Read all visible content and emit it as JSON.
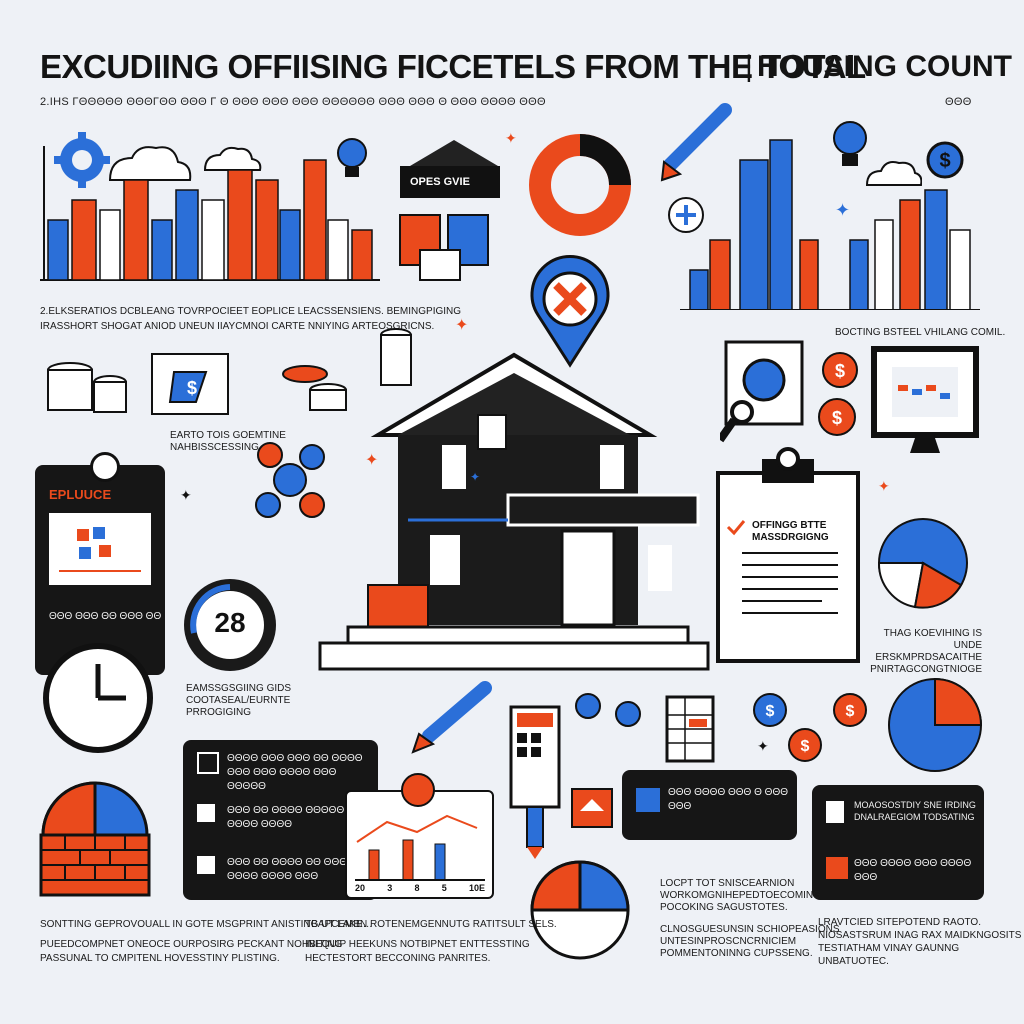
{
  "title": {
    "main": "EXCUDIING OFFIISING FICCETELS FROM THE TOTAL",
    "right": "HOUSING COUNT",
    "subtitle": "2.IHS ΓΘΘΘΘΘ ΘΘΘΓΘΘ ΘΘΘ Γ Θ ΘΘΘ ΘΘΘ ΘΘΘ ΘΘΘΘΘΘ ΘΘΘ ΘΘΘ Θ ΘΘΘ ΘΘΘΘ ΘΘΘ",
    "subtitle_right": "ΘΘΘ"
  },
  "colors": {
    "blue": "#2b6fd8",
    "orange": "#ea4a1c",
    "dark": "#161616",
    "bg": "#eef1f6"
  },
  "top_left": {
    "caption_1": "2.ELKSERATIOS DCBLEANG TOVRPOCIEET EOPLICE LEACSSENSIENS. BEMINGPIGING",
    "caption_2": "IRASSHORT SHOGAT ANIOD UNEUN IIAYCMNOI CARTE NNIYING ARTEOSGRICNS."
  },
  "sign_label": "OPES GVIE",
  "top_right_caption": "BOCTING BSTEEL VHILANG COMIL.",
  "earth_caption": {
    "line1": "EARTO TOIS GOEMTINE",
    "line2": "NAHBISSCESSING"
  },
  "left_panel": {
    "label": "EPLUUCE",
    "footer": "ΘΘΘ ΘΘΘ ΘΘ ΘΘΘ ΘΘ"
  },
  "gauge_value": "28",
  "gauge_caption": {
    "line1": "EAMSSGSGIING GIDS",
    "line2": "COOTASEAL/EURNTE",
    "line3": "PRROGIGING"
  },
  "clipboard": {
    "line1": "OFFINGG BTTE",
    "line2": "MASSDRGIGNG"
  },
  "right_caption": {
    "line1": "THAG KOEVIHING IS UNDE",
    "line2": "ERSKMPRDSACAITHE",
    "line3": "PNIRTAGCONGTNIOGE"
  },
  "notes_panel": {
    "item1": "ΘΘΘΘ ΘΘΘ ΘΘΘ ΘΘ ΘΘΘΘ ΘΘΘ ΘΘΘ ΘΘΘΘ ΘΘΘ ΘΘΘΘΘ",
    "item2": "ΘΘΘ ΘΘ ΘΘΘΘ ΘΘΘΘΘ ΘΘΘΘ ΘΘΘΘ",
    "item3": "ΘΘΘ ΘΘ ΘΘΘΘ ΘΘ ΘΘΘ ΘΘΘΘ ΘΘΘΘ ΘΘΘ"
  },
  "mini_chart_labels": [
    "20",
    "3",
    "8",
    "5",
    "10E"
  ],
  "blue_panel_text": "ΘΘΘ ΘΘΘΘ ΘΘΘ Θ ΘΘΘ ΘΘΘ",
  "right_panel": {
    "item1": "MOAOSOSTDIY SNE IRDING",
    "item1b": "DNALRAEGIOM TODSATING",
    "item2": "ΘΘΘ ΘΘΘΘ ΘΘΘ ΘΘΘΘ ΘΘΘ"
  },
  "bottom": {
    "col1_line1": "SONTTING GEPROVOUALL IN GOTE MSGPRINT ANISTING UT LAKE…",
    "col1_line2": "PUEEDCOMPNET ONEOCE OURPOSIRG PECKANT NOHBITING",
    "col1_line3": "PASSUNAL TO CMPITENL HOVESSTINY PLISTING.",
    "col2_line1": "TBAPCEMBN ROTENEMGENNUTG RATITSULT SELS.",
    "col2_line2": "INEQUIP HEEKUNS NOTBIPNET ENTTESSTING",
    "col2_line3": "HECTESTORT BECCONING PANRITES.",
    "col3_line1": "LOCPT TOT SNISCEARNION",
    "col3_line2": "WORKOMGNIHEPEDTOECOMING",
    "col3_line3": "POCOKING SAGUSTOTES.",
    "col3_line4": "CLNOSGUESUNSIN SCHIOPEASIONS",
    "col3_line5": "UNTESINPROSCNCRNICIEM",
    "col3_line6": "POMMENTONINNG CUPSSENG.",
    "col4_line1": "LRAVTCIED SITEPOTEND RAOTO.",
    "col4_line2": "NIOSASTSRUM INAG RAX MAIDKNGOSITS",
    "col4_line3": "TESTIATHAM VINAY GAUNNG UNBATUOTEC."
  }
}
